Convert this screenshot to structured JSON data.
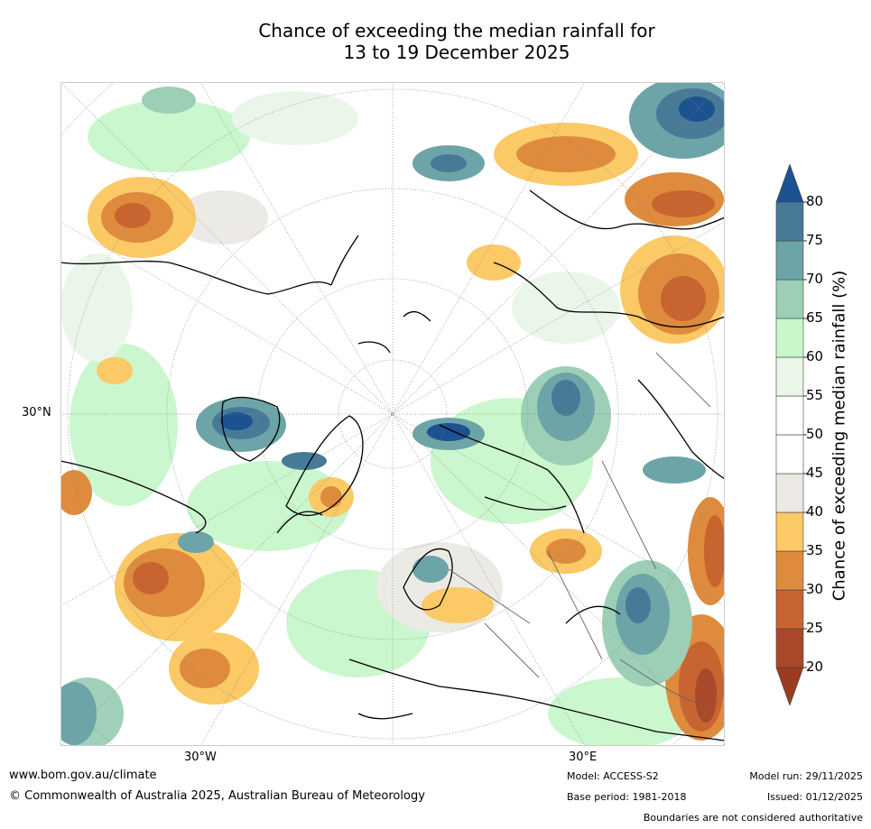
{
  "title": {
    "line1": "Chance of exceeding the median rainfall for",
    "line2": "13 to 19 December 2025"
  },
  "map": {
    "lat_label": "30°N",
    "lon_label_west": "30°W",
    "lon_label_east": "30°E"
  },
  "colorbar": {
    "title": "Chance of exceeding median rainfall (%)",
    "ticks": [
      "20",
      "25",
      "30",
      "35",
      "40",
      "45",
      "50",
      "55",
      "60",
      "65",
      "70",
      "75",
      "80"
    ],
    "colors": [
      "#9b3b1f",
      "#a9482a",
      "#c8642f",
      "#de8b3e",
      "#fbc965",
      "#ece9e4",
      "#ffffff",
      "#ffffff",
      "#e9f6e8",
      "#c8f7cb",
      "#9ccfb6",
      "#6ca4a8",
      "#487a98",
      "#1c5290"
    ]
  },
  "footer": {
    "website": "www.bom.gov.au/climate",
    "copyright": "© Commonwealth of Australia 2025, Australian Bureau of Meteorology",
    "model": "Model: ACCESS-S2",
    "base_period": "Base period: 1981-2018",
    "model_run": "Model run: 29/11/2025",
    "issued": "Issued: 01/12/2025",
    "disclaimer": "Boundaries are not considered authoritative"
  }
}
